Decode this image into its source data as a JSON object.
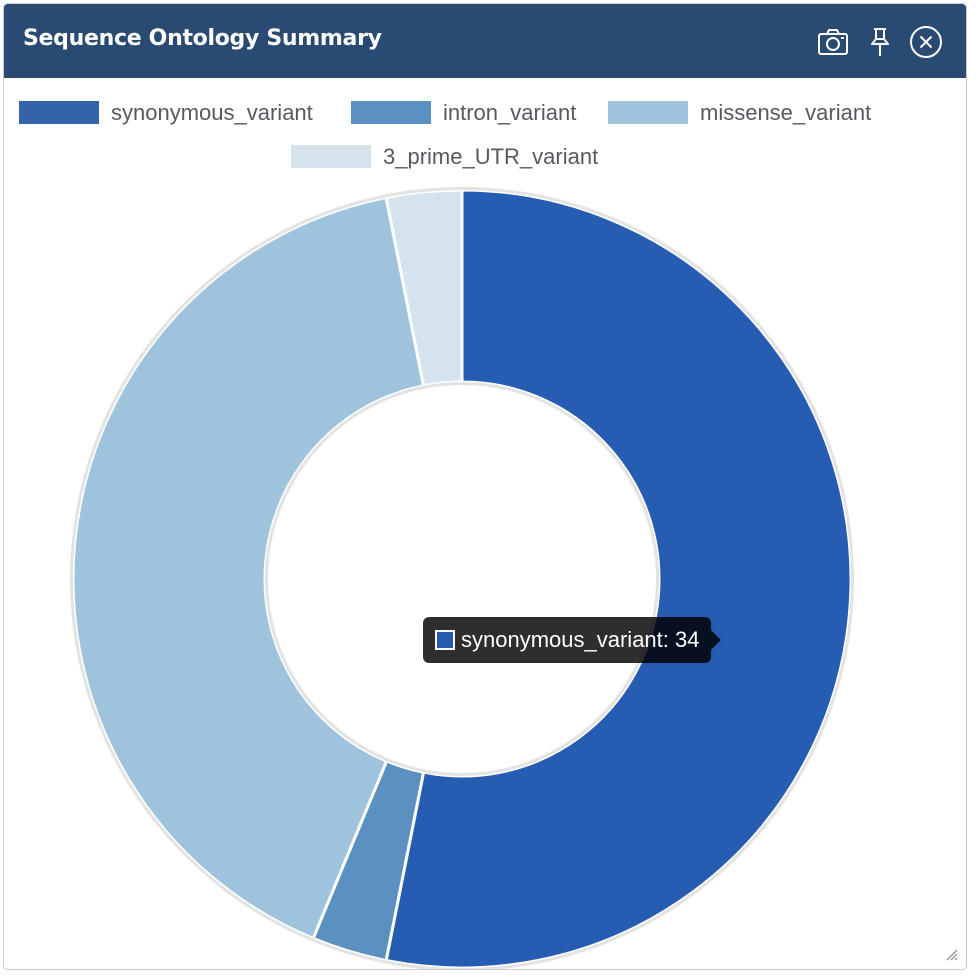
{
  "window": {
    "title": "Sequence Ontology Summary",
    "buttons": {
      "screenshot_icon": "camera-icon",
      "pin_icon": "pin-icon",
      "close_icon": "close-icon"
    }
  },
  "colors": {
    "header_bg": "#294a72",
    "synonymous_variant": "#265cb2",
    "intron_variant": "#5a91c1",
    "missense_variant": "#9fc3dc",
    "3_prime_UTR_variant": "#d5e3ef"
  },
  "tooltip": {
    "text": "synonymous_variant: 34",
    "color": "#265cb2"
  },
  "chart_data": {
    "type": "pie",
    "variant": "doughnut",
    "title": "",
    "legend_position": "top",
    "categories": [
      "synonymous_variant",
      "intron_variant",
      "missense_variant",
      "3_prime_UTR_variant"
    ],
    "values": [
      34,
      2,
      26,
      2
    ],
    "legend_swatch_colors": [
      "#3563a8",
      "#5a91c1",
      "#9fc3dc",
      "#d5e3ef"
    ],
    "slice_colors": [
      "#265cb2",
      "#5a91c1",
      "#9fc3dc",
      "#d5e3ef"
    ]
  }
}
